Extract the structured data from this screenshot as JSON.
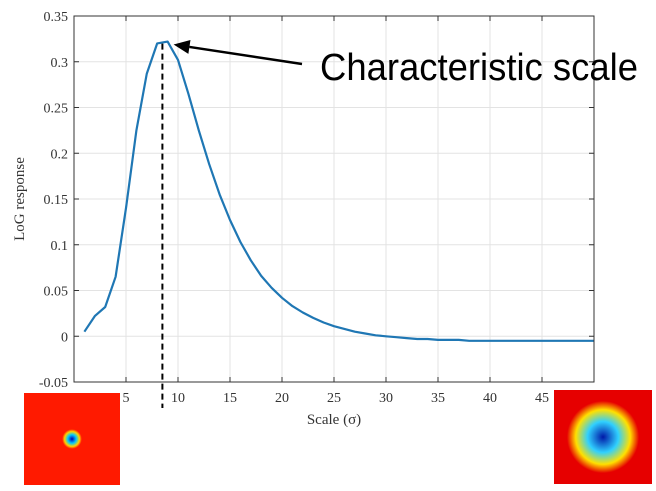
{
  "chart_data": {
    "type": "line",
    "title": "",
    "xlabel": "Scale (σ)",
    "ylabel": "LoG response",
    "xlim": [
      0,
      50
    ],
    "ylim": [
      -0.05,
      0.35
    ],
    "grid": true,
    "x_ticks": [
      5,
      10,
      15,
      20,
      25,
      30,
      35,
      40,
      45
    ],
    "x_tick_labels": [
      "5",
      "10",
      "15",
      "20",
      "25",
      "30",
      "35",
      "40",
      "45"
    ],
    "y_ticks": [
      -0.05,
      0,
      0.05,
      0.1,
      0.15,
      0.2,
      0.25,
      0.3,
      0.35
    ],
    "y_tick_labels": [
      "-0.05",
      "0",
      "0.05",
      "0.1",
      "0.15",
      "0.2",
      "0.25",
      "0.3",
      "0.35"
    ],
    "series": [
      {
        "color": "#1f77b4",
        "x": [
          1,
          2,
          3,
          4,
          5,
          6,
          7,
          8,
          9,
          10,
          11,
          12,
          13,
          14,
          15,
          16,
          17,
          18,
          19,
          20,
          21,
          22,
          23,
          24,
          25,
          26,
          27,
          28,
          29,
          30,
          31,
          32,
          33,
          34,
          35,
          36,
          37,
          38,
          39,
          40,
          41,
          42,
          43,
          44,
          45,
          46,
          47,
          48,
          49,
          50
        ],
        "y": [
          0.005,
          0.022,
          0.032,
          0.065,
          0.14,
          0.225,
          0.287,
          0.32,
          0.322,
          0.302,
          0.265,
          0.225,
          0.188,
          0.155,
          0.127,
          0.103,
          0.083,
          0.066,
          0.053,
          0.042,
          0.033,
          0.026,
          0.02,
          0.015,
          0.011,
          0.008,
          0.005,
          0.003,
          0.001,
          0.0,
          -0.001,
          -0.002,
          -0.003,
          -0.003,
          -0.004,
          -0.004,
          -0.004,
          -0.005,
          -0.005,
          -0.005,
          -0.005,
          -0.005,
          -0.005,
          -0.005,
          -0.005,
          -0.005,
          -0.005,
          -0.005,
          -0.005,
          -0.005
        ]
      }
    ],
    "peak_marker": {
      "x": 8.5,
      "style": "dashed",
      "color": "#000000"
    },
    "annotation": {
      "text": "Characteristic scale",
      "points_to_x": 9,
      "points_to_y": 0.321
    },
    "thumbnails": [
      {
        "name": "small-blob",
        "bg": "#ff1a00",
        "ring": "#ffd200",
        "inner": "#00c8ff",
        "core": "#0000b4"
      },
      {
        "name": "large-blob",
        "bg": "#e60000",
        "ring": "#ffe000",
        "inner": "#30d0ff",
        "core": "#0018a8"
      }
    ]
  }
}
